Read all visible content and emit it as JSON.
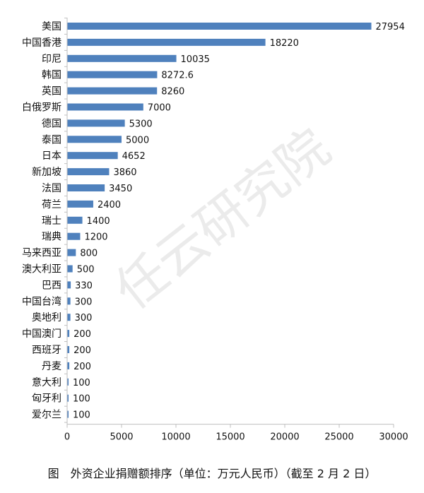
{
  "watermark": "任云研究院",
  "caption": "图　外资企业捐赠额排序（单位：万元人民币）（截至 2 月 2 日）",
  "colors": {
    "bar": "#4f81bd",
    "axis": "#bfbfbf",
    "text": "#111111"
  },
  "chart_data": {
    "type": "bar",
    "orientation": "horizontal",
    "categories": [
      "美国",
      "中国香港",
      "印尼",
      "韩国",
      "英国",
      "白俄罗斯",
      "德国",
      "泰国",
      "日本",
      "新加坡",
      "法国",
      "荷兰",
      "瑞士",
      "瑞典",
      "马来西亚",
      "澳大利亚",
      "巴西",
      "中国台湾",
      "奥地利",
      "中国澳门",
      "西班牙",
      "丹麦",
      "意大利",
      "匈牙利",
      "爱尔兰"
    ],
    "values": [
      27954,
      18220,
      10035,
      8272.6,
      8260,
      7000,
      5300,
      5000,
      4652,
      3860,
      3450,
      2400,
      1400,
      1200,
      800,
      500,
      330,
      300,
      300,
      200,
      200,
      200,
      100,
      100,
      100
    ],
    "data_labels": [
      "27954",
      "18220",
      "10035",
      "8272.6",
      "8260",
      "7000",
      "5300",
      "5000",
      "4652",
      "3860",
      "3450",
      "2400",
      "1400",
      "1200",
      "800",
      "500",
      "330",
      "300",
      "300",
      "200",
      "200",
      "200",
      "100",
      "100",
      "100"
    ],
    "xlim": [
      0,
      30000
    ],
    "xticks": [
      0,
      5000,
      10000,
      15000,
      20000,
      25000,
      30000
    ],
    "xtick_labels": [
      "0",
      "5000",
      "10000",
      "15000",
      "20000",
      "25000",
      "30000"
    ],
    "title": "",
    "xlabel": "",
    "ylabel": "",
    "grid": false,
    "legend": false
  }
}
